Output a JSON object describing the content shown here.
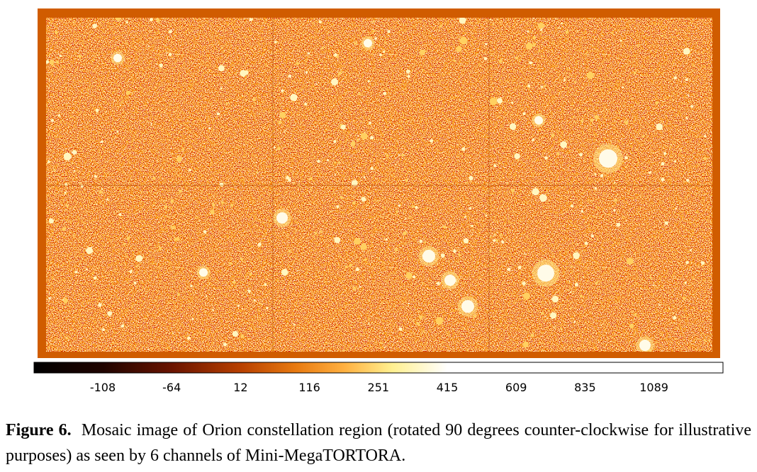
{
  "figure": {
    "colorbar": {
      "ticks": [
        -108,
        -64,
        12,
        116,
        251,
        415,
        609,
        835,
        1089
      ]
    },
    "caption": {
      "label": "Figure 6.",
      "text": "Mosaic image of Orion constellation region (rotated 90 degrees counter-clockwise for illustrative purposes) as seen by 6 channels of Mini-MegaTORTORA."
    }
  }
}
